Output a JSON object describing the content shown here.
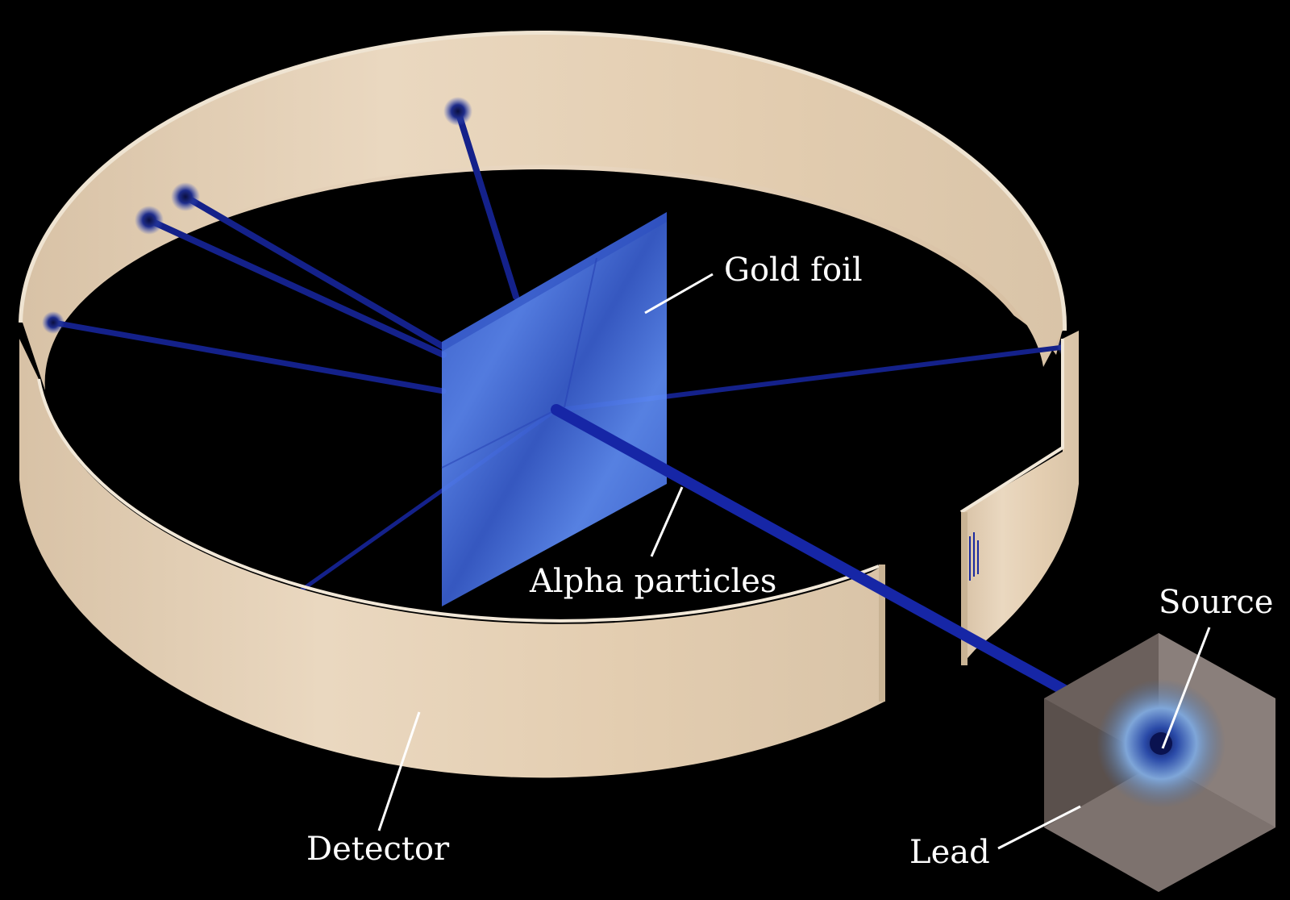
{
  "labels": {
    "gold_foil": "Gold foil",
    "alpha_particles": "Alpha particles",
    "source": "Source",
    "detector": "Detector",
    "lead": "Lead"
  },
  "colors": {
    "background": "#000000",
    "detector_band": "#e6d2b8",
    "detector_rim": "#efe4d2",
    "foil": "#4f7ff0",
    "beam": "#1a2aa0",
    "lead_block": "#6b605c",
    "label_text": "#ffffff"
  }
}
